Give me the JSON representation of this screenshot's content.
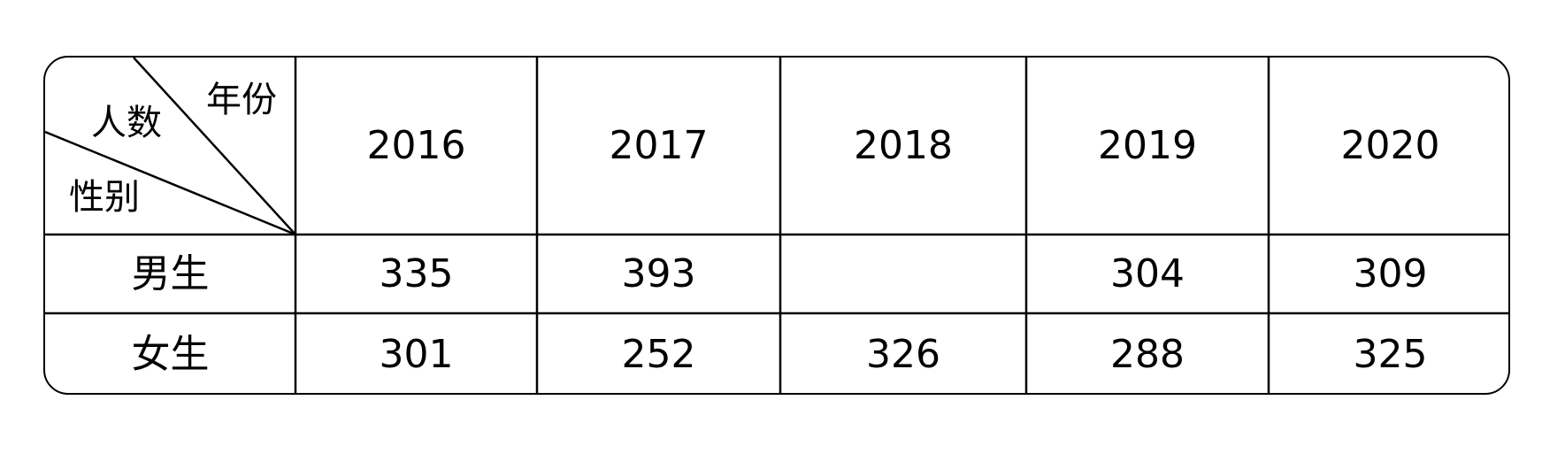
{
  "table": {
    "corner": {
      "top_right": "年份",
      "middle": "人数",
      "bottom_left": "性别"
    },
    "years": [
      "2016",
      "2017",
      "2018",
      "2019",
      "2020"
    ],
    "rows": [
      {
        "label": "男生",
        "values": [
          "335",
          "393",
          "",
          "304",
          "309"
        ]
      },
      {
        "label": "女生",
        "values": [
          "301",
          "252",
          "326",
          "288",
          "325"
        ]
      }
    ]
  }
}
